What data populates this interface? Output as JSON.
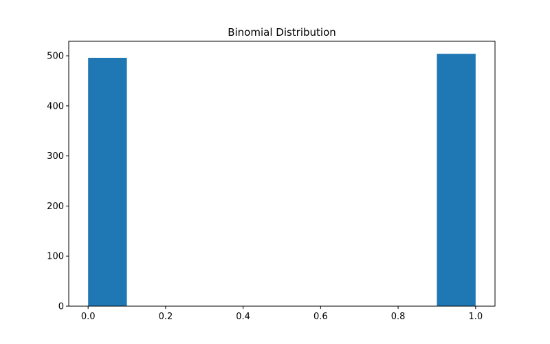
{
  "chart_data": {
    "type": "bar",
    "title": "Binomial Distribution",
    "xlabel": "",
    "ylabel": "",
    "bins": [
      {
        "x_start": 0.0,
        "x_end": 0.1,
        "value": 496
      },
      {
        "x_start": 0.9,
        "x_end": 1.0,
        "value": 504
      }
    ],
    "xlim": [
      -0.05,
      1.05
    ],
    "ylim": [
      0,
      529
    ],
    "x_ticks": [
      0.0,
      0.2,
      0.4,
      0.6,
      0.8,
      1.0
    ],
    "x_tick_labels": [
      "0.0",
      "0.2",
      "0.4",
      "0.6",
      "0.8",
      "1.0"
    ],
    "y_ticks": [
      0,
      100,
      200,
      300,
      400,
      500
    ],
    "y_tick_labels": [
      "0",
      "100",
      "200",
      "300",
      "400",
      "500"
    ],
    "grid": false,
    "legend": "none",
    "bar_color": "#1f77b4"
  }
}
